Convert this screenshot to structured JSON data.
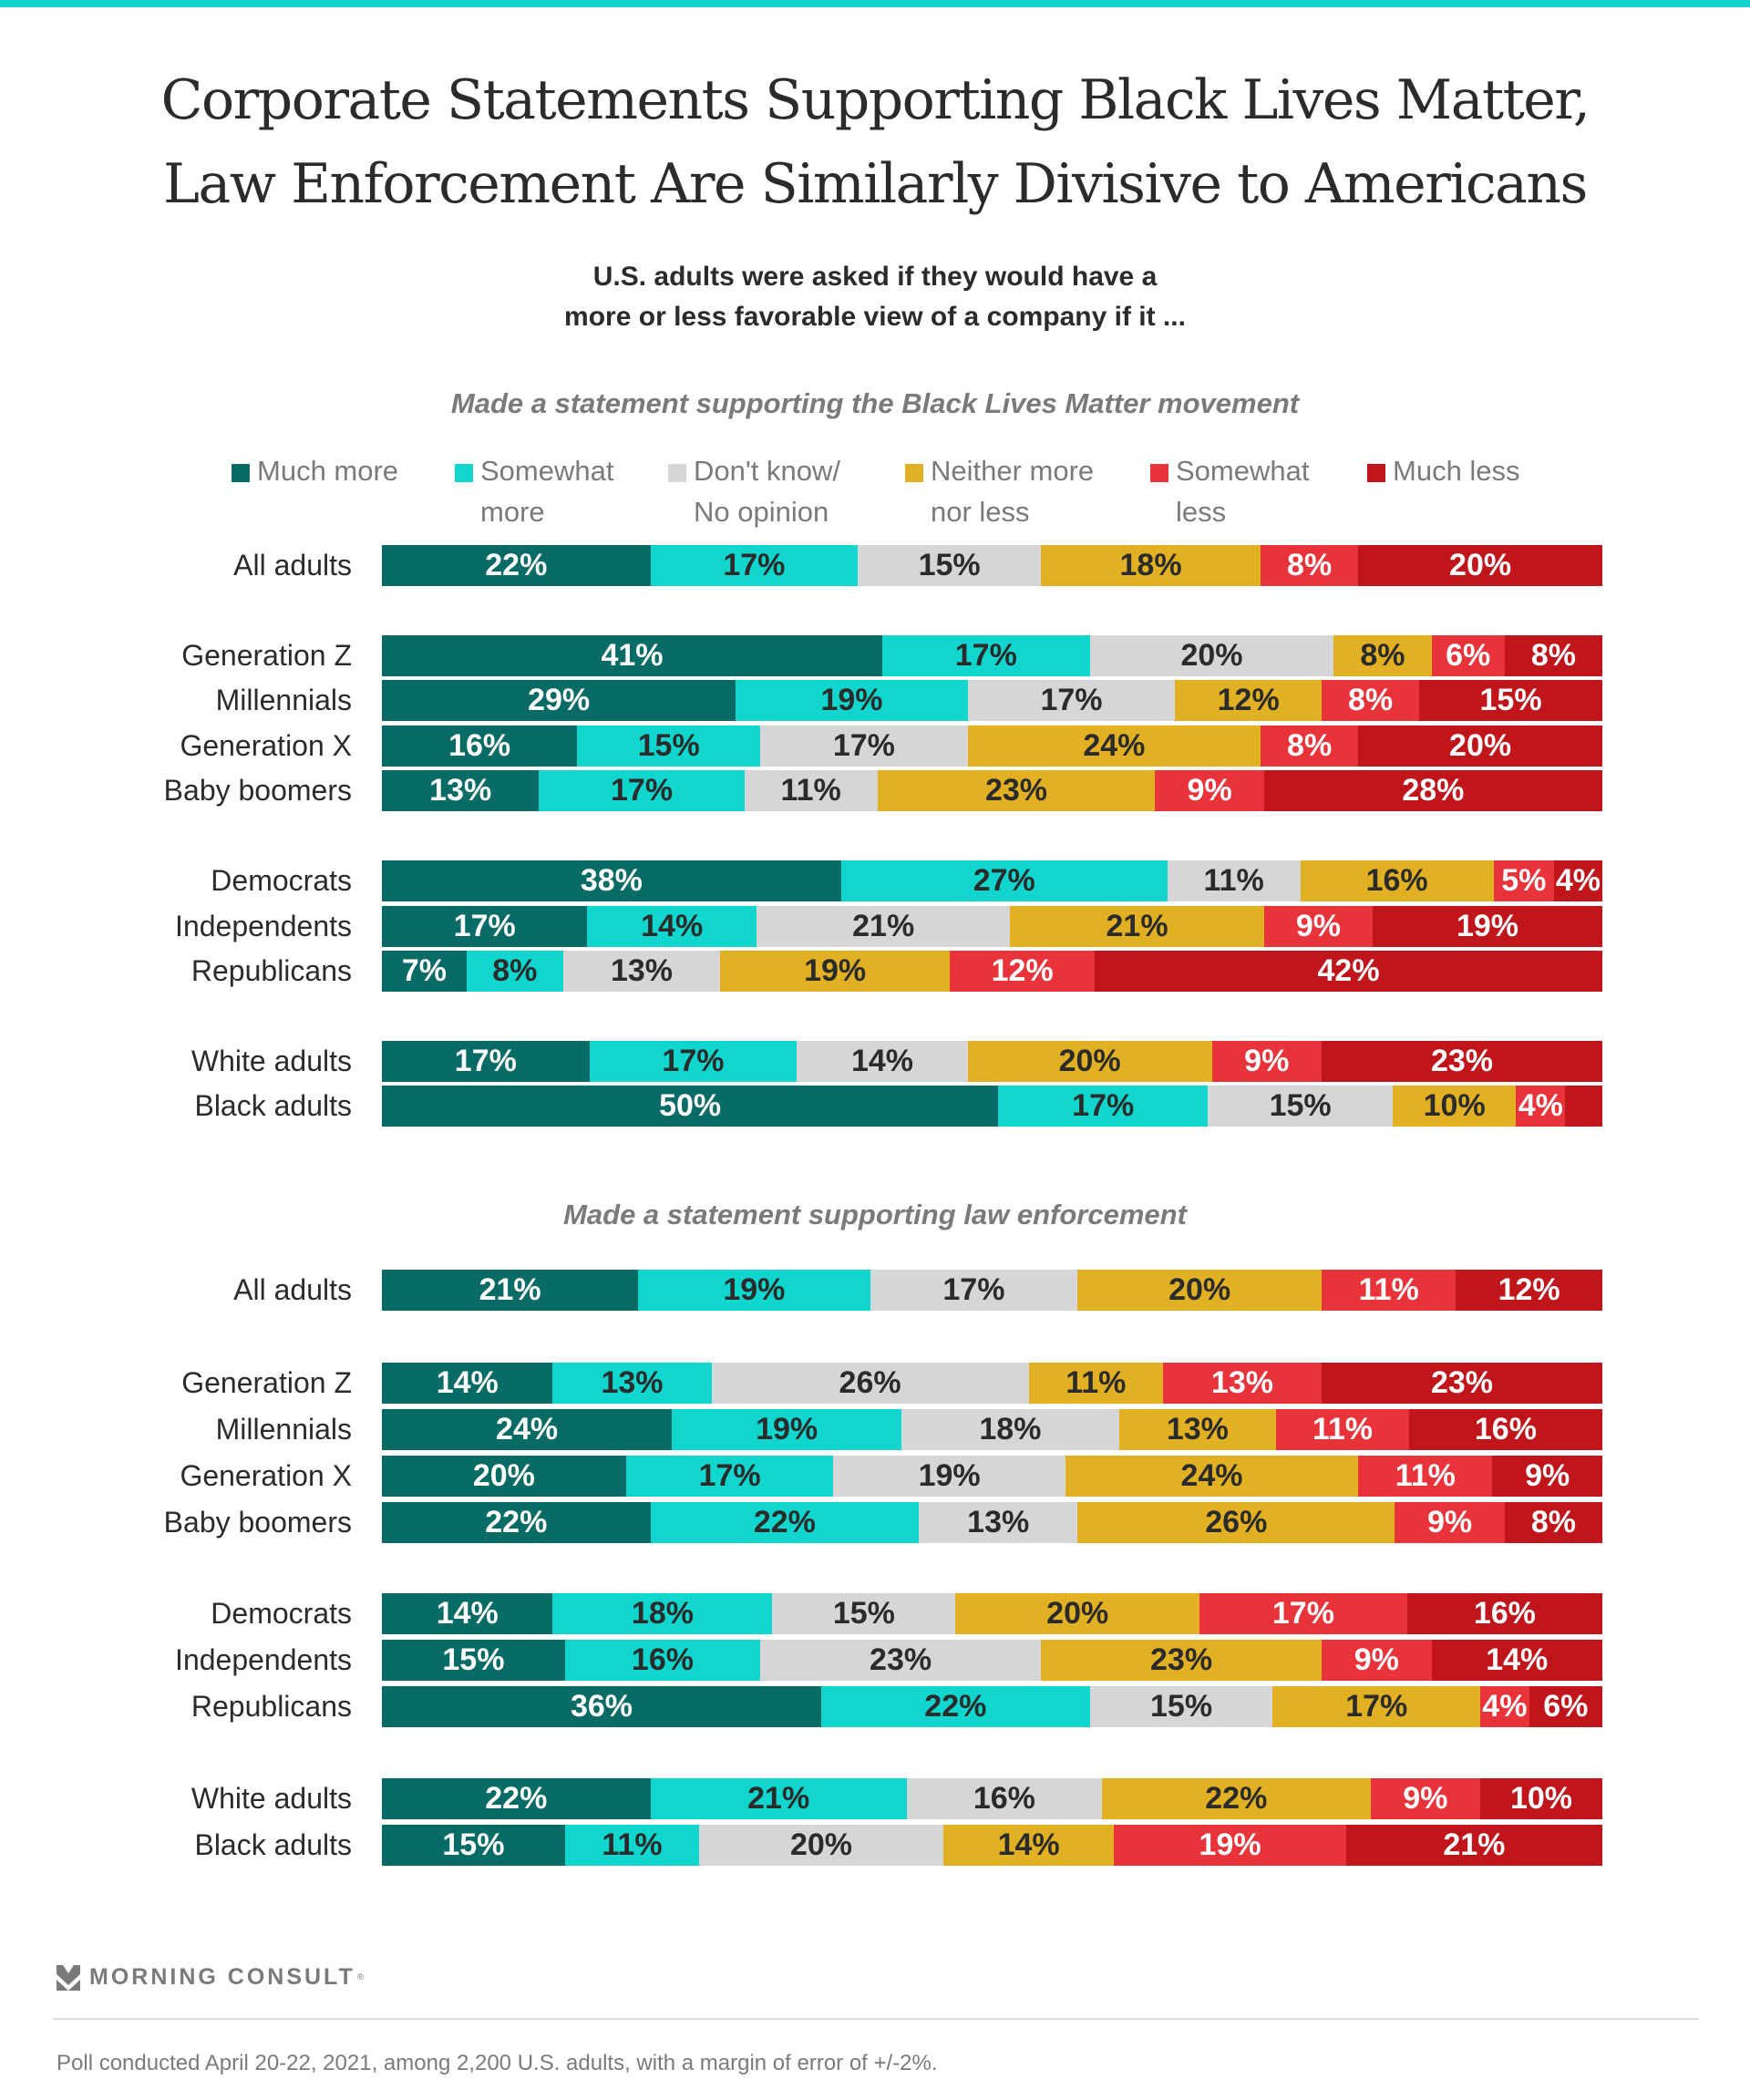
{
  "header": {
    "title_line1": "Corporate Statements Supporting Black Lives Matter,",
    "title_line2": "Law Enforcement Are Similarly Divisive to Americans",
    "subtitle_line1": "U.S. adults were asked if they would have a",
    "subtitle_line2": "more or less favorable view of a company if it ..."
  },
  "legend": [
    {
      "line1": "Much more",
      "line2": "",
      "color": "#086b66"
    },
    {
      "line1": "Somewhat",
      "line2": "more",
      "color": "#10d6cd"
    },
    {
      "line1": "Don't know/",
      "line2": "No opinion",
      "color": "#d6d6d6"
    },
    {
      "line1": "Neither more",
      "line2": "nor less",
      "color": "#e2b023"
    },
    {
      "line1": "Somewhat",
      "line2": "less",
      "color": "#e8333a"
    },
    {
      "line1": "Much less",
      "line2": "",
      "color": "#bf151b"
    }
  ],
  "footer": {
    "brand": "MORNING CONSULT",
    "registered": "®",
    "logo_icon": "morning-consult-chevron-icon",
    "note": "Poll conducted April 20-22, 2021, among 2,200 U.S. adults, with a margin of error of +/-2%."
  },
  "chart_data": [
    {
      "type": "bar",
      "orientation": "horizontal-stacked-100",
      "title": "Made a statement supporting the Black Lives Matter movement",
      "series_names": [
        "Much more",
        "Somewhat more",
        "Don't know/No opinion",
        "Neither more nor less",
        "Somewhat less",
        "Much less"
      ],
      "categories": [
        "All adults",
        "Generation Z",
        "Millennials",
        "Generation X",
        "Baby boomers",
        "Democrats",
        "Independents",
        "Republicans",
        "White adults",
        "Black adults"
      ],
      "groups": [
        [
          0
        ],
        [
          1,
          2,
          3,
          4
        ],
        [
          5,
          6,
          7
        ],
        [
          8,
          9
        ]
      ],
      "values": [
        [
          22,
          17,
          15,
          18,
          8,
          20
        ],
        [
          41,
          17,
          20,
          8,
          6,
          8
        ],
        [
          29,
          19,
          17,
          12,
          8,
          15
        ],
        [
          16,
          15,
          17,
          24,
          8,
          20
        ],
        [
          13,
          17,
          11,
          23,
          9,
          28
        ],
        [
          38,
          27,
          11,
          16,
          5,
          4
        ],
        [
          17,
          14,
          21,
          21,
          9,
          19
        ],
        [
          7,
          8,
          13,
          19,
          12,
          42
        ],
        [
          17,
          17,
          14,
          20,
          9,
          23
        ],
        [
          50,
          17,
          15,
          10,
          4,
          3
        ]
      ],
      "labels": [
        [
          "22%",
          "17%",
          "15%",
          "18%",
          "8%",
          "20%"
        ],
        [
          "41%",
          "17%",
          "20%",
          "8%",
          "6%",
          "8%"
        ],
        [
          "29%",
          "19%",
          "17%",
          "12%",
          "8%",
          "15%"
        ],
        [
          "16%",
          "15%",
          "17%",
          "24%",
          "8%",
          "20%"
        ],
        [
          "13%",
          "17%",
          "11%",
          "23%",
          "9%",
          "28%"
        ],
        [
          "38%",
          "27%",
          "11%",
          "16%",
          "5%",
          "4%"
        ],
        [
          "17%",
          "14%",
          "21%",
          "21%",
          "9%",
          "19%"
        ],
        [
          "7%",
          "8%",
          "13%",
          "19%",
          "12%",
          "42%"
        ],
        [
          "17%",
          "17%",
          "14%",
          "20%",
          "9%",
          "23%"
        ],
        [
          "50%",
          "17%",
          "15%",
          "10%",
          "4%",
          ""
        ]
      ],
      "xlim": [
        0,
        100
      ],
      "legend_position": "top"
    },
    {
      "type": "bar",
      "orientation": "horizontal-stacked-100",
      "title": "Made a statement supporting law enforcement",
      "series_names": [
        "Much more",
        "Somewhat more",
        "Don't know/No opinion",
        "Neither more nor less",
        "Somewhat less",
        "Much less"
      ],
      "categories": [
        "All adults",
        "Generation Z",
        "Millennials",
        "Generation X",
        "Baby boomers",
        "Democrats",
        "Independents",
        "Republicans",
        "White adults",
        "Black adults"
      ],
      "groups": [
        [
          0
        ],
        [
          1,
          2,
          3,
          4
        ],
        [
          5,
          6,
          7
        ],
        [
          8,
          9
        ]
      ],
      "values": [
        [
          21,
          19,
          17,
          20,
          11,
          12
        ],
        [
          14,
          13,
          26,
          11,
          13,
          23
        ],
        [
          24,
          19,
          18,
          13,
          11,
          16
        ],
        [
          20,
          17,
          19,
          24,
          11,
          9
        ],
        [
          22,
          22,
          13,
          26,
          9,
          8
        ],
        [
          14,
          18,
          15,
          20,
          17,
          16
        ],
        [
          15,
          16,
          23,
          23,
          9,
          14
        ],
        [
          36,
          22,
          15,
          17,
          4,
          6
        ],
        [
          22,
          21,
          16,
          22,
          9,
          10
        ],
        [
          15,
          11,
          20,
          14,
          19,
          21
        ]
      ],
      "labels": [
        [
          "21%",
          "19%",
          "17%",
          "20%",
          "11%",
          "12%"
        ],
        [
          "14%",
          "13%",
          "26%",
          "11%",
          "13%",
          "23%"
        ],
        [
          "24%",
          "19%",
          "18%",
          "13%",
          "11%",
          "16%"
        ],
        [
          "20%",
          "17%",
          "19%",
          "24%",
          "11%",
          "9%"
        ],
        [
          "22%",
          "22%",
          "13%",
          "26%",
          "9%",
          "8%"
        ],
        [
          "14%",
          "18%",
          "15%",
          "20%",
          "17%",
          "16%"
        ],
        [
          "15%",
          "16%",
          "23%",
          "23%",
          "9%",
          "14%"
        ],
        [
          "36%",
          "22%",
          "15%",
          "17%",
          "4%",
          "6%"
        ],
        [
          "22%",
          "21%",
          "16%",
          "22%",
          "9%",
          "10%"
        ],
        [
          "15%",
          "11%",
          "20%",
          "14%",
          "19%",
          "21%"
        ]
      ],
      "xlim": [
        0,
        100
      ],
      "legend_position": "top"
    }
  ],
  "style": {
    "series_colors": [
      "#086b66",
      "#10d6cd",
      "#d6d6d6",
      "#e2b023",
      "#e8333a",
      "#bf151b"
    ],
    "label_colors": [
      "#ffffff",
      "#2b2b2b",
      "#2b2b2b",
      "#2b2b2b",
      "#ffffff",
      "#ffffff"
    ]
  }
}
